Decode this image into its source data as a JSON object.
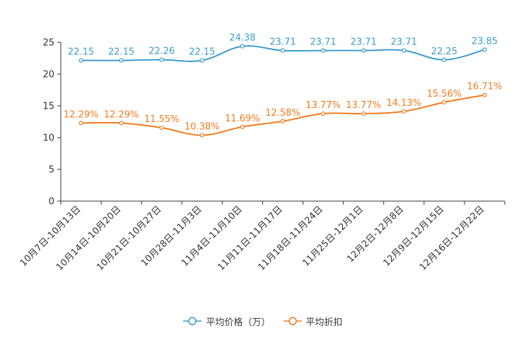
{
  "chart_data": {
    "type": "line",
    "categories": [
      "10月7日-10月13日",
      "10月14日-10月20日",
      "10月21日-10月27日",
      "10月28日-11月3日",
      "11月4日-11月10日",
      "11月11日-11月17日",
      "11月18日-11月24日",
      "11月25日-12月1日",
      "12月2日-12月8日",
      "12月9日-12月15日",
      "12月16日-12月22日"
    ],
    "series": [
      {
        "name": "平均价格（万）",
        "color": "#3d9ccc",
        "values": [
          22.15,
          22.15,
          22.26,
          22.15,
          24.38,
          23.71,
          23.71,
          23.71,
          23.71,
          22.25,
          23.85
        ],
        "labels": [
          "22.15",
          "22.15",
          "22.26",
          "22.15",
          "24.38",
          "23.71",
          "23.71",
          "23.71",
          "23.71",
          "22.25",
          "23.85"
        ]
      },
      {
        "name": "平均折扣",
        "color": "#f27b1f",
        "values": [
          12.29,
          12.29,
          11.55,
          10.38,
          11.69,
          12.58,
          13.77,
          13.77,
          14.13,
          15.56,
          16.71
        ],
        "labels": [
          "12.29%",
          "12.29%",
          "11.55%",
          "10.38%",
          "11.69%",
          "12.58%",
          "13.77%",
          "13.77%",
          "14.13%",
          "15.56%",
          "16.71%"
        ]
      }
    ],
    "yticks": [
      "0",
      "5",
      "10",
      "15",
      "20",
      "25"
    ],
    "ylim": [
      0,
      25
    ],
    "title": "",
    "xlabel": "",
    "ylabel": "",
    "grid": false,
    "legend": "bottom-center"
  }
}
